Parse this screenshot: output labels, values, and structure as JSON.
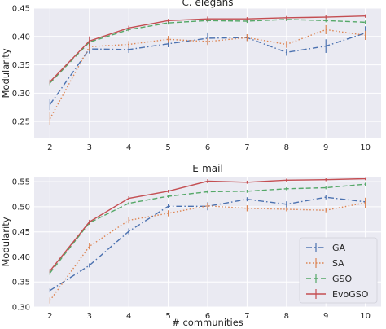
{
  "chart_data": [
    {
      "type": "line",
      "title": "C. elegans",
      "xlabel": "",
      "ylabel": "Modularity",
      "x": [
        2,
        3,
        4,
        5,
        6,
        7,
        8,
        9,
        10
      ],
      "xlim": [
        1.6,
        10.4
      ],
      "ylim": [
        0.22,
        0.45
      ],
      "yticks": [
        0.25,
        0.3,
        0.35,
        0.4,
        0.45
      ],
      "grid": true,
      "series": [
        {
          "name": "GA",
          "color": "#4c72b0",
          "dash": "dashdot",
          "values": [
            0.28,
            0.378,
            0.377,
            0.387,
            0.397,
            0.398,
            0.372,
            0.383,
            0.406
          ],
          "err": [
            0.01,
            0.008,
            0.006,
            0.006,
            0.01,
            0.006,
            0.006,
            0.012,
            0.012
          ]
        },
        {
          "name": "SA",
          "color": "#dd8452",
          "dash": "dotted",
          "values": [
            0.255,
            0.382,
            0.386,
            0.395,
            0.391,
            0.398,
            0.386,
            0.412,
            0.402
          ],
          "err": [
            0.012,
            0.008,
            0.006,
            0.006,
            0.006,
            0.006,
            0.006,
            0.008,
            0.008
          ]
        },
        {
          "name": "GSO",
          "color": "#55a868",
          "dash": "dashed",
          "values": [
            0.318,
            0.39,
            0.412,
            0.424,
            0.428,
            0.427,
            0.43,
            0.428,
            0.425
          ],
          "err": [
            0.004,
            0.004,
            0.003,
            0.003,
            0.003,
            0.003,
            0.003,
            0.003,
            0.003
          ]
        },
        {
          "name": "EvoGSO",
          "color": "#c44e52",
          "dash": "solid",
          "values": [
            0.32,
            0.392,
            0.415,
            0.428,
            0.431,
            0.431,
            0.433,
            0.434,
            0.436
          ],
          "err": [
            0.004,
            0.008,
            0.004,
            0.003,
            0.004,
            0.003,
            0.003,
            0.003,
            0.003
          ]
        }
      ]
    },
    {
      "type": "line",
      "title": "E-mail",
      "xlabel": "# communities",
      "ylabel": "Modularity",
      "x": [
        2,
        3,
        4,
        5,
        6,
        7,
        8,
        9,
        10
      ],
      "xlim": [
        1.6,
        10.4
      ],
      "ylim": [
        0.3,
        0.56
      ],
      "yticks": [
        0.3,
        0.35,
        0.4,
        0.45,
        0.5,
        0.55
      ],
      "grid": true,
      "legend": "lower-right",
      "series": [
        {
          "name": "GA",
          "color": "#4c72b0",
          "dash": "dashdot",
          "values": [
            0.333,
            0.383,
            0.451,
            0.501,
            0.501,
            0.515,
            0.505,
            0.519,
            0.51
          ],
          "err": [
            0.004,
            0.004,
            0.006,
            0.004,
            0.008,
            0.004,
            0.006,
            0.004,
            0.004
          ]
        },
        {
          "name": "SA",
          "color": "#dd8452",
          "dash": "dotted",
          "values": [
            0.313,
            0.421,
            0.473,
            0.487,
            0.502,
            0.497,
            0.495,
            0.493,
            0.508
          ],
          "err": [
            0.006,
            0.006,
            0.006,
            0.006,
            0.006,
            0.006,
            0.004,
            0.004,
            0.01
          ]
        },
        {
          "name": "GSO",
          "color": "#55a868",
          "dash": "dashed",
          "values": [
            0.368,
            0.468,
            0.507,
            0.521,
            0.53,
            0.531,
            0.536,
            0.538,
            0.545
          ],
          "err": [
            0.004,
            0.004,
            0.003,
            0.003,
            0.003,
            0.003,
            0.003,
            0.003,
            0.003
          ]
        },
        {
          "name": "EvoGSO",
          "color": "#c44e52",
          "dash": "solid",
          "values": [
            0.372,
            0.47,
            0.517,
            0.531,
            0.551,
            0.549,
            0.553,
            0.554,
            0.556
          ],
          "err": [
            0.004,
            0.004,
            0.004,
            0.003,
            0.004,
            0.003,
            0.003,
            0.003,
            0.003
          ]
        }
      ]
    }
  ]
}
